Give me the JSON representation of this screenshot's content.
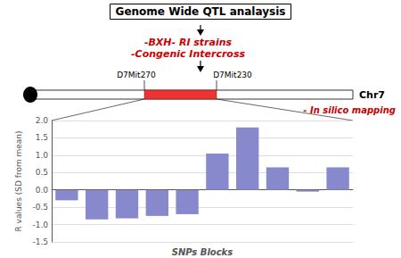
{
  "chart_data": {
    "type": "bar",
    "title": "Genome Wide QTL analaysis",
    "annotations": [
      "-BXH- RI strains",
      "-Congenic Intercross",
      "Chr7",
      "D7Mit270",
      "D7Mit230",
      "- In silico mapping"
    ],
    "categories": [
      null,
      null,
      null,
      null,
      null,
      null,
      null,
      null,
      null,
      null
    ],
    "values": [
      -0.3,
      -0.85,
      -0.82,
      -0.75,
      -0.7,
      1.05,
      1.8,
      0.65,
      -0.05,
      0.65
    ],
    "color": "#8888cc",
    "xlabel": "SNPs Blocks",
    "ylabel": "R values (SD from mean)",
    "ylim": [
      -1.5,
      2.0
    ],
    "yticks": [
      -1.5,
      {
        "value": -1.0,
        "label": "-1.0"
      },
      -0.5,
      {
        "value": 0.0,
        "label": "0.0"
      },
      0.5,
      {
        "value": 1.0,
        "label": "1.0"
      },
      1.5,
      {
        "value": 2.0,
        "label": "2.0"
      }
    ],
    "grid": true,
    "tick_labels": "y"
  }
}
